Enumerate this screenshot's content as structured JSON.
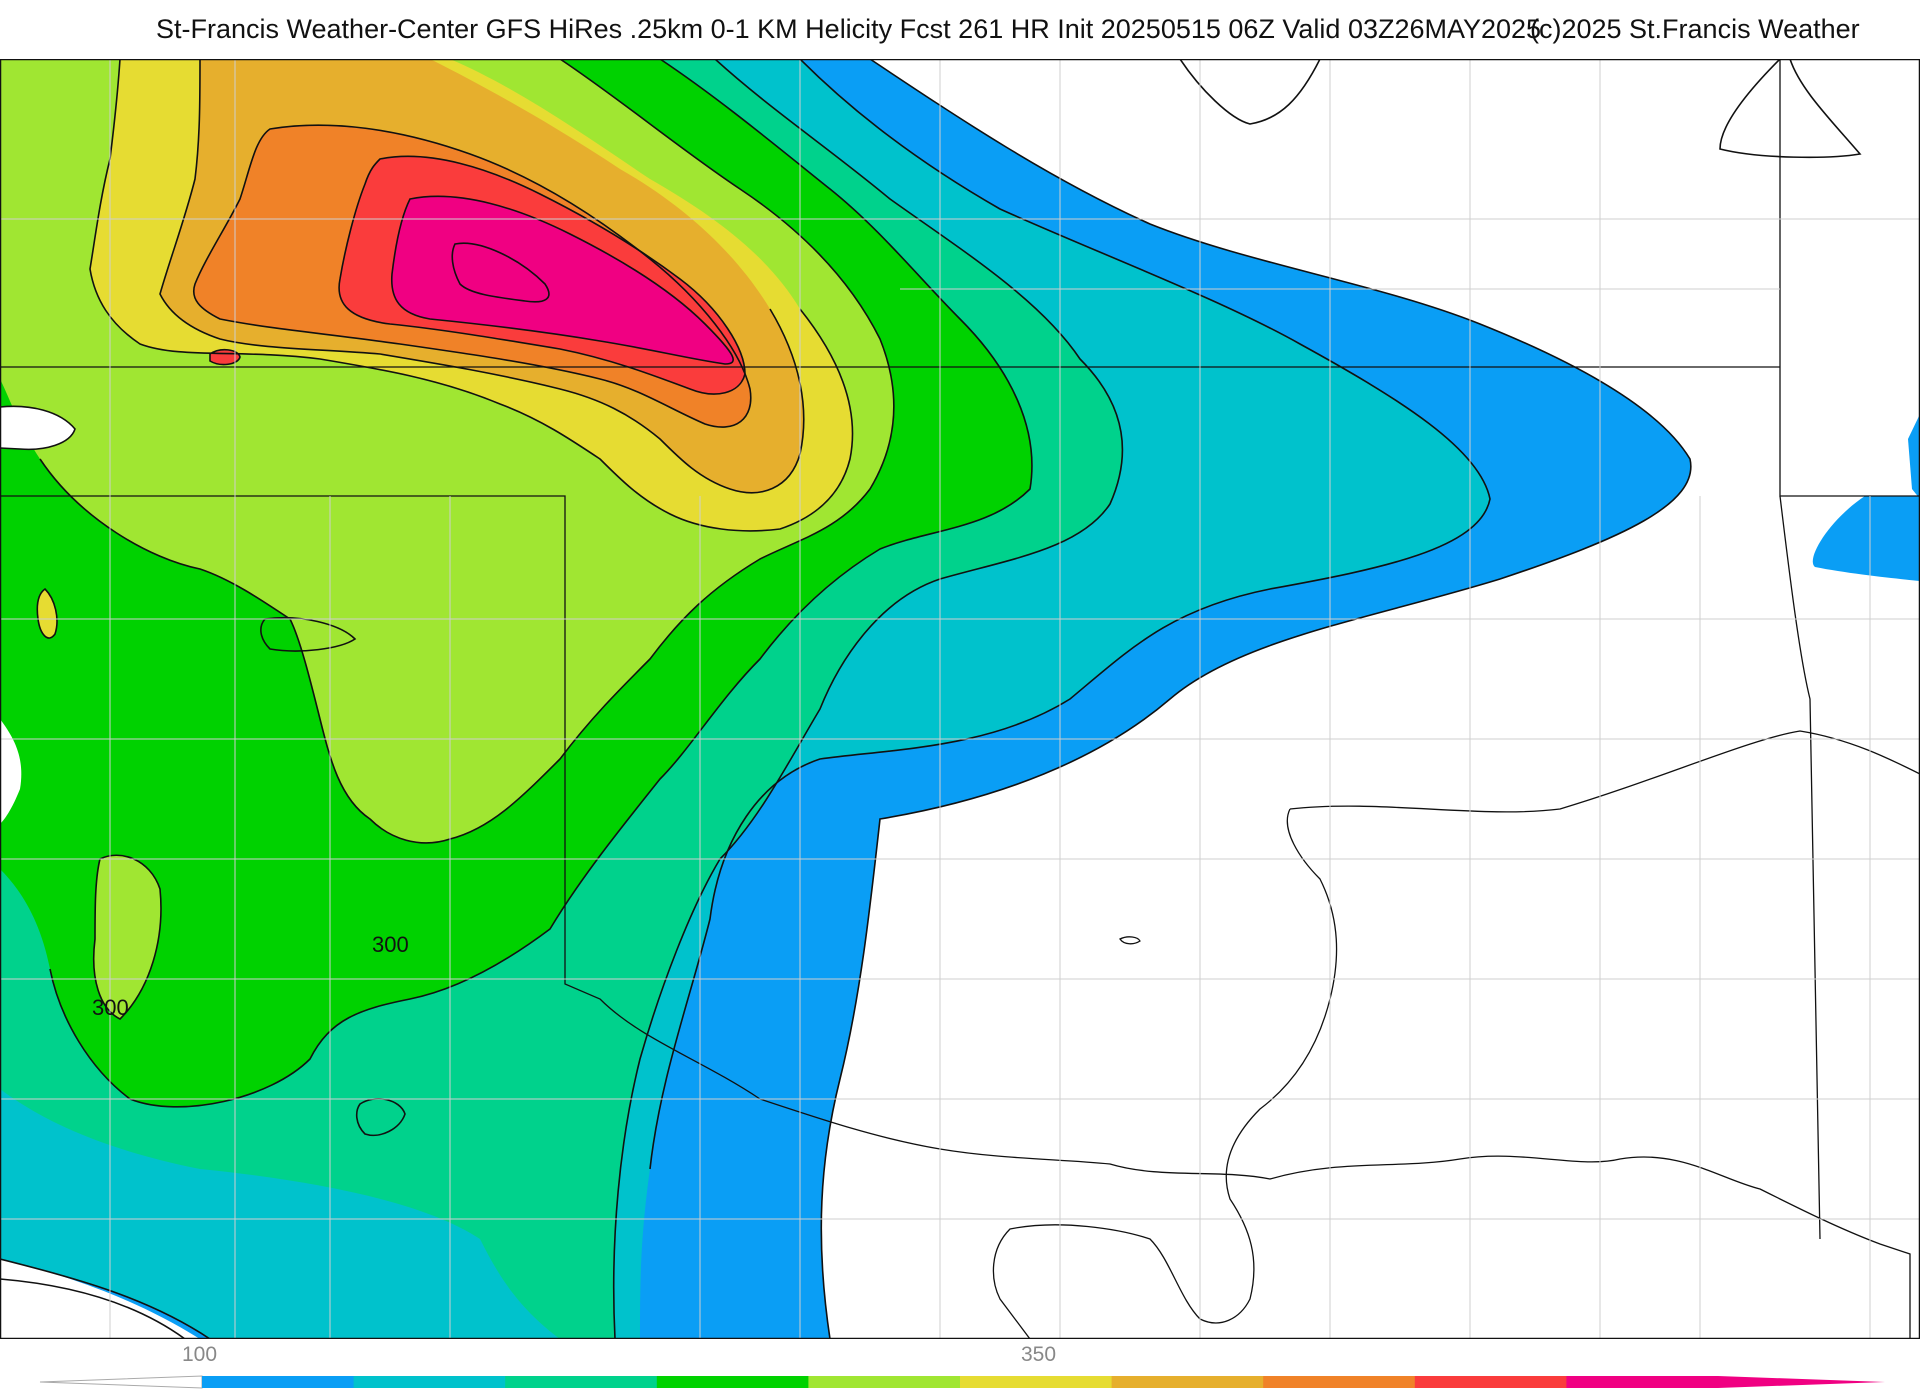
{
  "header": {
    "title_left": "St-Francis Weather-Center GFS HiRes .25km 0-1 KM Helicity Fcst 261 HR Init 20250515 06Z  Valid 03Z26MAY2025",
    "title_right": "(c)2025 St.Francis Weather"
  },
  "map": {
    "contour_labels": [
      "300",
      "300"
    ],
    "fill_colors": {
      "c100": "#0a9ef5",
      "c150": "#00c2cc",
      "c200": "#00d28c",
      "c250": "#00d200",
      "c300": "#a0e632",
      "c350": "#e6dc32",
      "c400": "#e6af2d",
      "c450": "#f08228",
      "c500": "#fa3c3c",
      "c550": "#f00082"
    }
  },
  "colorbar": {
    "tick_labels": [
      "100",
      "350"
    ],
    "segments": [
      "#0a9ef5",
      "#00c2cc",
      "#00d28c",
      "#00d200",
      "#a0e632",
      "#e6dc32",
      "#e6af2d",
      "#f08228",
      "#fa3c3c",
      "#f00082"
    ]
  }
}
